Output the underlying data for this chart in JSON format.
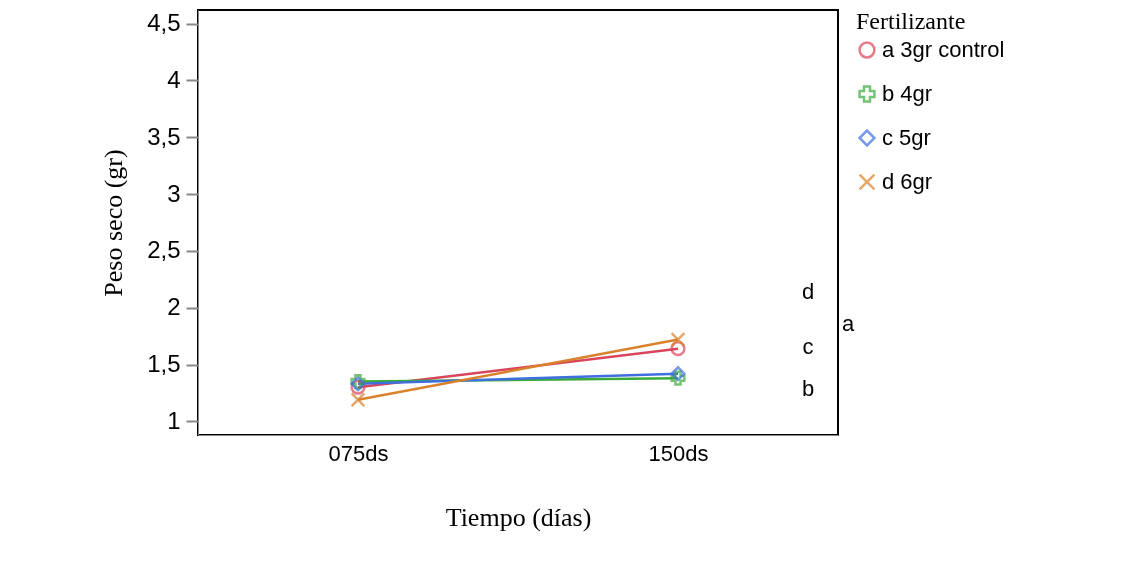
{
  "chart_data": {
    "type": "line",
    "xlabel": "Tiempo (días)",
    "ylabel": "Peso seco (gr)",
    "legend_title": "Fertilizante",
    "legend": "right",
    "categories": [
      "075ds",
      "150ds"
    ],
    "ylim": [
      0.88,
      4.62
    ],
    "yticks": [
      1,
      {
        "value": 1.5,
        "label": "1,5"
      },
      2,
      {
        "value": 2.5,
        "label": "2,5"
      },
      3,
      {
        "value": 3.5,
        "label": "3,5"
      },
      4,
      {
        "value": 4.5,
        "label": "4,5"
      }
    ],
    "grid": false,
    "line_style": "solid",
    "series": [
      {
        "name": "a 3gr control",
        "color": "#d9455a",
        "marker": "circle",
        "values": [
          1.3,
          1.64
        ]
      },
      {
        "name": "b 4gr",
        "color": "#3aaa3a",
        "marker": "cross",
        "values": [
          1.35,
          1.38
        ]
      },
      {
        "name": "c 5gr",
        "color": "#3f6fdf",
        "marker": "diamond",
        "values": [
          1.33,
          1.42
        ]
      },
      {
        "name": "d 6gr",
        "color": "#d9822b",
        "marker": "x",
        "values": [
          1.19,
          1.72
        ]
      }
    ],
    "annotations": [
      "d",
      "a",
      "c",
      "b"
    ]
  }
}
